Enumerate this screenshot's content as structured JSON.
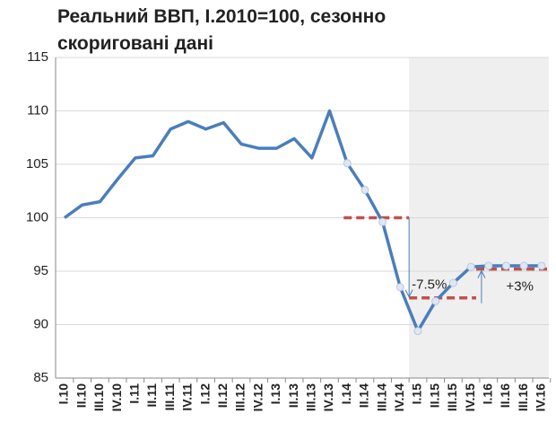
{
  "chart_data": {
    "type": "line",
    "title": "Реальний ВВП, I.2010=100, сезонно скориговані дані",
    "categories": [
      "I.10",
      "II.10",
      "III.10",
      "IV.10",
      "I.11",
      "II.11",
      "III.11",
      "IV.11",
      "I.12",
      "II.12",
      "III.12",
      "IV.12",
      "I.13",
      "II.13",
      "III.13",
      "IV.13",
      "I.14",
      "II.14",
      "III.14",
      "IV.14",
      "I.15",
      "II.15",
      "III.15",
      "IV.15",
      "I.16",
      "II.16",
      "III.16",
      "IV.16"
    ],
    "series": [
      {
        "name": "Реальний ВВП",
        "color": "#4a7ebb",
        "values": [
          100,
          101.2,
          101.5,
          103.6,
          105.6,
          105.8,
          108.3,
          109.0,
          108.3,
          108.9,
          106.9,
          106.5,
          106.5,
          107.4,
          105.6,
          110.0,
          105.1,
          102.6,
          99.6,
          93.5,
          89.4,
          92.2,
          93.9,
          95.4,
          95.5,
          95.5,
          95.5,
          95.5
        ]
      }
    ],
    "ylim": [
      85,
      115
    ],
    "yticks": [
      85,
      90,
      95,
      100,
      105,
      110,
      115
    ],
    "grid": true,
    "reference_lines": [
      {
        "value": 100,
        "color": "#c0504d"
      },
      {
        "value": 92.5,
        "color": "#c0504d"
      },
      {
        "value": 95.2,
        "color": "#c0504d"
      }
    ],
    "annotations": [
      "-7.5%",
      "+3%"
    ]
  }
}
